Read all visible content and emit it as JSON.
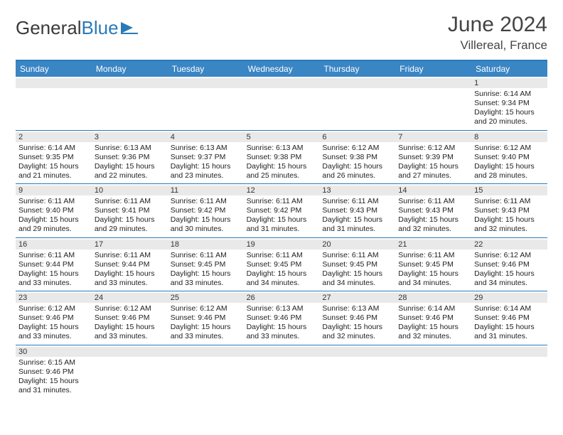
{
  "logo": {
    "text1": "General",
    "text2": "Blue"
  },
  "title": "June 2024",
  "location": "Villereal, France",
  "daynames": [
    "Sunday",
    "Monday",
    "Tuesday",
    "Wednesday",
    "Thursday",
    "Friday",
    "Saturday"
  ],
  "colors": {
    "header_bar": "#3a85c4",
    "border": "#2a7ab8",
    "daynum_bg": "#e9e9e9",
    "text": "#222222"
  },
  "weeks": [
    [
      {
        "day": "",
        "sunrise": "",
        "sunset": "",
        "daylight1": "",
        "daylight2": ""
      },
      {
        "day": "",
        "sunrise": "",
        "sunset": "",
        "daylight1": "",
        "daylight2": ""
      },
      {
        "day": "",
        "sunrise": "",
        "sunset": "",
        "daylight1": "",
        "daylight2": ""
      },
      {
        "day": "",
        "sunrise": "",
        "sunset": "",
        "daylight1": "",
        "daylight2": ""
      },
      {
        "day": "",
        "sunrise": "",
        "sunset": "",
        "daylight1": "",
        "daylight2": ""
      },
      {
        "day": "",
        "sunrise": "",
        "sunset": "",
        "daylight1": "",
        "daylight2": ""
      },
      {
        "day": "1",
        "sunrise": "Sunrise: 6:14 AM",
        "sunset": "Sunset: 9:34 PM",
        "daylight1": "Daylight: 15 hours",
        "daylight2": "and 20 minutes."
      }
    ],
    [
      {
        "day": "2",
        "sunrise": "Sunrise: 6:14 AM",
        "sunset": "Sunset: 9:35 PM",
        "daylight1": "Daylight: 15 hours",
        "daylight2": "and 21 minutes."
      },
      {
        "day": "3",
        "sunrise": "Sunrise: 6:13 AM",
        "sunset": "Sunset: 9:36 PM",
        "daylight1": "Daylight: 15 hours",
        "daylight2": "and 22 minutes."
      },
      {
        "day": "4",
        "sunrise": "Sunrise: 6:13 AM",
        "sunset": "Sunset: 9:37 PM",
        "daylight1": "Daylight: 15 hours",
        "daylight2": "and 23 minutes."
      },
      {
        "day": "5",
        "sunrise": "Sunrise: 6:13 AM",
        "sunset": "Sunset: 9:38 PM",
        "daylight1": "Daylight: 15 hours",
        "daylight2": "and 25 minutes."
      },
      {
        "day": "6",
        "sunrise": "Sunrise: 6:12 AM",
        "sunset": "Sunset: 9:38 PM",
        "daylight1": "Daylight: 15 hours",
        "daylight2": "and 26 minutes."
      },
      {
        "day": "7",
        "sunrise": "Sunrise: 6:12 AM",
        "sunset": "Sunset: 9:39 PM",
        "daylight1": "Daylight: 15 hours",
        "daylight2": "and 27 minutes."
      },
      {
        "day": "8",
        "sunrise": "Sunrise: 6:12 AM",
        "sunset": "Sunset: 9:40 PM",
        "daylight1": "Daylight: 15 hours",
        "daylight2": "and 28 minutes."
      }
    ],
    [
      {
        "day": "9",
        "sunrise": "Sunrise: 6:11 AM",
        "sunset": "Sunset: 9:40 PM",
        "daylight1": "Daylight: 15 hours",
        "daylight2": "and 29 minutes."
      },
      {
        "day": "10",
        "sunrise": "Sunrise: 6:11 AM",
        "sunset": "Sunset: 9:41 PM",
        "daylight1": "Daylight: 15 hours",
        "daylight2": "and 29 minutes."
      },
      {
        "day": "11",
        "sunrise": "Sunrise: 6:11 AM",
        "sunset": "Sunset: 9:42 PM",
        "daylight1": "Daylight: 15 hours",
        "daylight2": "and 30 minutes."
      },
      {
        "day": "12",
        "sunrise": "Sunrise: 6:11 AM",
        "sunset": "Sunset: 9:42 PM",
        "daylight1": "Daylight: 15 hours",
        "daylight2": "and 31 minutes."
      },
      {
        "day": "13",
        "sunrise": "Sunrise: 6:11 AM",
        "sunset": "Sunset: 9:43 PM",
        "daylight1": "Daylight: 15 hours",
        "daylight2": "and 31 minutes."
      },
      {
        "day": "14",
        "sunrise": "Sunrise: 6:11 AM",
        "sunset": "Sunset: 9:43 PM",
        "daylight1": "Daylight: 15 hours",
        "daylight2": "and 32 minutes."
      },
      {
        "day": "15",
        "sunrise": "Sunrise: 6:11 AM",
        "sunset": "Sunset: 9:43 PM",
        "daylight1": "Daylight: 15 hours",
        "daylight2": "and 32 minutes."
      }
    ],
    [
      {
        "day": "16",
        "sunrise": "Sunrise: 6:11 AM",
        "sunset": "Sunset: 9:44 PM",
        "daylight1": "Daylight: 15 hours",
        "daylight2": "and 33 minutes."
      },
      {
        "day": "17",
        "sunrise": "Sunrise: 6:11 AM",
        "sunset": "Sunset: 9:44 PM",
        "daylight1": "Daylight: 15 hours",
        "daylight2": "and 33 minutes."
      },
      {
        "day": "18",
        "sunrise": "Sunrise: 6:11 AM",
        "sunset": "Sunset: 9:45 PM",
        "daylight1": "Daylight: 15 hours",
        "daylight2": "and 33 minutes."
      },
      {
        "day": "19",
        "sunrise": "Sunrise: 6:11 AM",
        "sunset": "Sunset: 9:45 PM",
        "daylight1": "Daylight: 15 hours",
        "daylight2": "and 34 minutes."
      },
      {
        "day": "20",
        "sunrise": "Sunrise: 6:11 AM",
        "sunset": "Sunset: 9:45 PM",
        "daylight1": "Daylight: 15 hours",
        "daylight2": "and 34 minutes."
      },
      {
        "day": "21",
        "sunrise": "Sunrise: 6:11 AM",
        "sunset": "Sunset: 9:45 PM",
        "daylight1": "Daylight: 15 hours",
        "daylight2": "and 34 minutes."
      },
      {
        "day": "22",
        "sunrise": "Sunrise: 6:12 AM",
        "sunset": "Sunset: 9:46 PM",
        "daylight1": "Daylight: 15 hours",
        "daylight2": "and 34 minutes."
      }
    ],
    [
      {
        "day": "23",
        "sunrise": "Sunrise: 6:12 AM",
        "sunset": "Sunset: 9:46 PM",
        "daylight1": "Daylight: 15 hours",
        "daylight2": "and 33 minutes."
      },
      {
        "day": "24",
        "sunrise": "Sunrise: 6:12 AM",
        "sunset": "Sunset: 9:46 PM",
        "daylight1": "Daylight: 15 hours",
        "daylight2": "and 33 minutes."
      },
      {
        "day": "25",
        "sunrise": "Sunrise: 6:12 AM",
        "sunset": "Sunset: 9:46 PM",
        "daylight1": "Daylight: 15 hours",
        "daylight2": "and 33 minutes."
      },
      {
        "day": "26",
        "sunrise": "Sunrise: 6:13 AM",
        "sunset": "Sunset: 9:46 PM",
        "daylight1": "Daylight: 15 hours",
        "daylight2": "and 33 minutes."
      },
      {
        "day": "27",
        "sunrise": "Sunrise: 6:13 AM",
        "sunset": "Sunset: 9:46 PM",
        "daylight1": "Daylight: 15 hours",
        "daylight2": "and 32 minutes."
      },
      {
        "day": "28",
        "sunrise": "Sunrise: 6:14 AM",
        "sunset": "Sunset: 9:46 PM",
        "daylight1": "Daylight: 15 hours",
        "daylight2": "and 32 minutes."
      },
      {
        "day": "29",
        "sunrise": "Sunrise: 6:14 AM",
        "sunset": "Sunset: 9:46 PM",
        "daylight1": "Daylight: 15 hours",
        "daylight2": "and 31 minutes."
      }
    ],
    [
      {
        "day": "30",
        "sunrise": "Sunrise: 6:15 AM",
        "sunset": "Sunset: 9:46 PM",
        "daylight1": "Daylight: 15 hours",
        "daylight2": "and 31 minutes."
      },
      {
        "day": "",
        "sunrise": "",
        "sunset": "",
        "daylight1": "",
        "daylight2": ""
      },
      {
        "day": "",
        "sunrise": "",
        "sunset": "",
        "daylight1": "",
        "daylight2": ""
      },
      {
        "day": "",
        "sunrise": "",
        "sunset": "",
        "daylight1": "",
        "daylight2": ""
      },
      {
        "day": "",
        "sunrise": "",
        "sunset": "",
        "daylight1": "",
        "daylight2": ""
      },
      {
        "day": "",
        "sunrise": "",
        "sunset": "",
        "daylight1": "",
        "daylight2": ""
      },
      {
        "day": "",
        "sunrise": "",
        "sunset": "",
        "daylight1": "",
        "daylight2": ""
      }
    ]
  ]
}
